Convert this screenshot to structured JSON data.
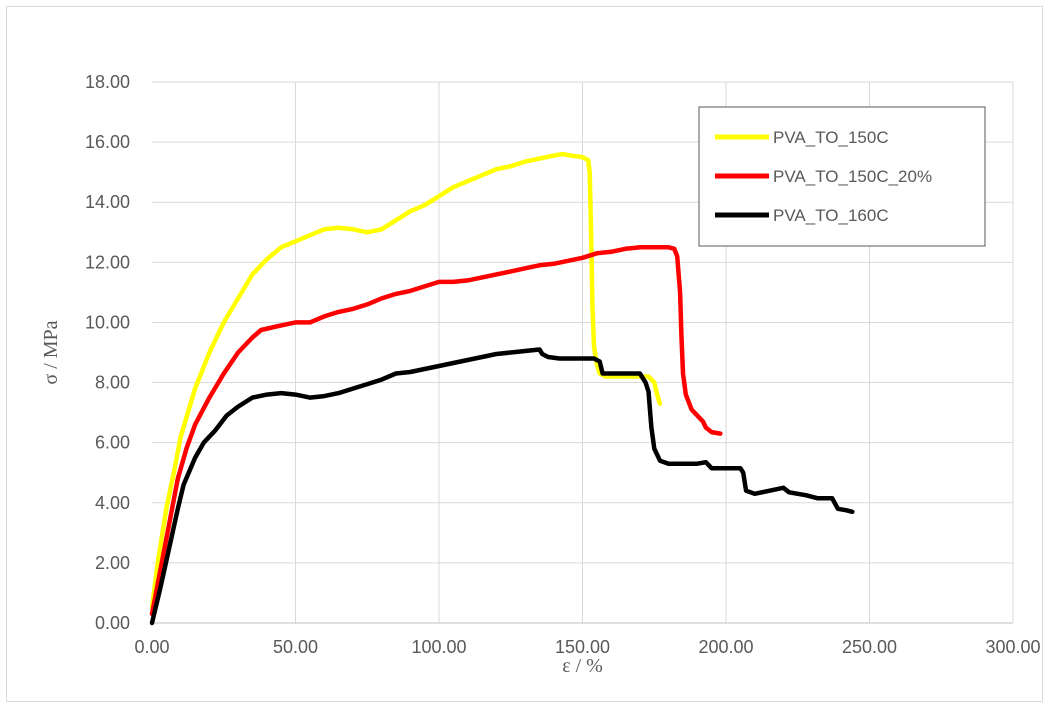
{
  "chart_data": {
    "type": "line",
    "title": "",
    "xlabel": "ε / %",
    "ylabel": "σ / MPa",
    "xlim": [
      0,
      300
    ],
    "ylim": [
      0,
      18
    ],
    "xticks": [
      "0.00",
      "50.00",
      "100.00",
      "150.00",
      "200.00",
      "250.00",
      "300.00"
    ],
    "yticks": [
      "0.00",
      "2.00",
      "4.00",
      "6.00",
      "8.00",
      "10.00",
      "12.00",
      "14.00",
      "16.00",
      "18.00"
    ],
    "grid": true,
    "legend_position": "top-right",
    "series": [
      {
        "name": "PVA_TO_150C",
        "color": "#FFFF00",
        "points": [
          [
            0,
            0.5
          ],
          [
            2,
            2.0
          ],
          [
            5,
            3.8
          ],
          [
            8,
            5.2
          ],
          [
            10,
            6.2
          ],
          [
            15,
            7.8
          ],
          [
            20,
            9.0
          ],
          [
            25,
            10.0
          ],
          [
            30,
            10.8
          ],
          [
            35,
            11.6
          ],
          [
            40,
            12.1
          ],
          [
            45,
            12.5
          ],
          [
            50,
            12.7
          ],
          [
            55,
            12.9
          ],
          [
            60,
            13.1
          ],
          [
            65,
            13.15
          ],
          [
            70,
            13.1
          ],
          [
            75,
            13.0
          ],
          [
            80,
            13.1
          ],
          [
            85,
            13.4
          ],
          [
            90,
            13.7
          ],
          [
            95,
            13.9
          ],
          [
            100,
            14.2
          ],
          [
            105,
            14.5
          ],
          [
            110,
            14.7
          ],
          [
            115,
            14.9
          ],
          [
            120,
            15.1
          ],
          [
            125,
            15.2
          ],
          [
            130,
            15.35
          ],
          [
            135,
            15.45
          ],
          [
            140,
            15.55
          ],
          [
            143,
            15.6
          ],
          [
            146,
            15.55
          ],
          [
            150,
            15.5
          ],
          [
            152,
            15.4
          ],
          [
            152.5,
            15.0
          ],
          [
            153,
            13.0
          ],
          [
            153.5,
            10.5
          ],
          [
            154,
            9.2
          ],
          [
            155,
            8.6
          ],
          [
            156,
            8.3
          ],
          [
            158,
            8.2
          ],
          [
            162,
            8.2
          ],
          [
            166,
            8.2
          ],
          [
            170,
            8.2
          ],
          [
            173,
            8.2
          ],
          [
            175,
            8.0
          ],
          [
            176,
            7.6
          ],
          [
            177,
            7.3
          ]
        ]
      },
      {
        "name": "PVA_TO_150C_20%",
        "color": "#FF0000",
        "points": [
          [
            0,
            0.3
          ],
          [
            3,
            1.8
          ],
          [
            6,
            3.3
          ],
          [
            9,
            4.8
          ],
          [
            12,
            5.8
          ],
          [
            15,
            6.6
          ],
          [
            20,
            7.5
          ],
          [
            25,
            8.3
          ],
          [
            30,
            9.0
          ],
          [
            35,
            9.5
          ],
          [
            38,
            9.75
          ],
          [
            45,
            9.9
          ],
          [
            50,
            10.0
          ],
          [
            55,
            10.0
          ],
          [
            60,
            10.2
          ],
          [
            65,
            10.35
          ],
          [
            70,
            10.45
          ],
          [
            75,
            10.6
          ],
          [
            80,
            10.8
          ],
          [
            85,
            10.95
          ],
          [
            90,
            11.05
          ],
          [
            95,
            11.2
          ],
          [
            100,
            11.35
          ],
          [
            105,
            11.35
          ],
          [
            110,
            11.4
          ],
          [
            115,
            11.5
          ],
          [
            120,
            11.6
          ],
          [
            125,
            11.7
          ],
          [
            130,
            11.8
          ],
          [
            135,
            11.9
          ],
          [
            140,
            11.95
          ],
          [
            145,
            12.05
          ],
          [
            150,
            12.15
          ],
          [
            155,
            12.3
          ],
          [
            160,
            12.35
          ],
          [
            165,
            12.45
          ],
          [
            170,
            12.5
          ],
          [
            175,
            12.5
          ],
          [
            180,
            12.5
          ],
          [
            182,
            12.45
          ],
          [
            183,
            12.2
          ],
          [
            184,
            11.0
          ],
          [
            184.5,
            9.5
          ],
          [
            185,
            8.3
          ],
          [
            186,
            7.6
          ],
          [
            188,
            7.1
          ],
          [
            190,
            6.9
          ],
          [
            192,
            6.7
          ],
          [
            193,
            6.5
          ],
          [
            195,
            6.35
          ],
          [
            198,
            6.3
          ]
        ]
      },
      {
        "name": "PVA_TO_160C",
        "color": "#000000",
        "points": [
          [
            0,
            0
          ],
          [
            3,
            1.2
          ],
          [
            6,
            2.5
          ],
          [
            9,
            3.8
          ],
          [
            11,
            4.6
          ],
          [
            15,
            5.5
          ],
          [
            18,
            6.0
          ],
          [
            22,
            6.4
          ],
          [
            26,
            6.9
          ],
          [
            30,
            7.2
          ],
          [
            35,
            7.5
          ],
          [
            40,
            7.6
          ],
          [
            45,
            7.65
          ],
          [
            50,
            7.6
          ],
          [
            55,
            7.5
          ],
          [
            60,
            7.55
          ],
          [
            65,
            7.65
          ],
          [
            70,
            7.8
          ],
          [
            75,
            7.95
          ],
          [
            80,
            8.1
          ],
          [
            85,
            8.3
          ],
          [
            90,
            8.35
          ],
          [
            95,
            8.45
          ],
          [
            100,
            8.55
          ],
          [
            105,
            8.65
          ],
          [
            110,
            8.75
          ],
          [
            115,
            8.85
          ],
          [
            120,
            8.95
          ],
          [
            125,
            9.0
          ],
          [
            130,
            9.05
          ],
          [
            135,
            9.1
          ],
          [
            136,
            8.95
          ],
          [
            138,
            8.85
          ],
          [
            142,
            8.8
          ],
          [
            146,
            8.8
          ],
          [
            150,
            8.8
          ],
          [
            154,
            8.8
          ],
          [
            156,
            8.7
          ],
          [
            157,
            8.3
          ],
          [
            160,
            8.3
          ],
          [
            165,
            8.3
          ],
          [
            170,
            8.3
          ],
          [
            172,
            8.0
          ],
          [
            173,
            7.7
          ],
          [
            174,
            6.5
          ],
          [
            175,
            5.8
          ],
          [
            177,
            5.4
          ],
          [
            180,
            5.3
          ],
          [
            185,
            5.3
          ],
          [
            190,
            5.3
          ],
          [
            193,
            5.35
          ],
          [
            195,
            5.15
          ],
          [
            200,
            5.15
          ],
          [
            205,
            5.15
          ],
          [
            206,
            5.0
          ],
          [
            207,
            4.4
          ],
          [
            210,
            4.3
          ],
          [
            215,
            4.4
          ],
          [
            220,
            4.5
          ],
          [
            222,
            4.35
          ],
          [
            228,
            4.25
          ],
          [
            232,
            4.15
          ],
          [
            237,
            4.15
          ],
          [
            239,
            3.8
          ],
          [
            242,
            3.75
          ],
          [
            244,
            3.7
          ]
        ]
      }
    ]
  }
}
